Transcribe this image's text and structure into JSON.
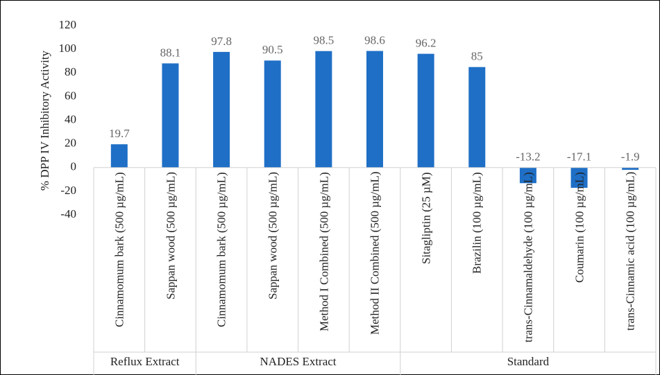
{
  "chart_data": {
    "type": "bar",
    "y_label": "% DPP IV Inhibitory Activity",
    "color": "#1f6fc6",
    "ylim": [
      -40,
      120
    ],
    "yticks": [
      -40,
      -20,
      0,
      20,
      40,
      60,
      80,
      100,
      120
    ],
    "groups": [
      {
        "name": "Reflux Extract",
        "categories": [
          "Cinnamomum bark (500 µg/mL)",
          "Sappan wood (500 µg/mL)"
        ],
        "values": [
          19.7,
          88.1
        ]
      },
      {
        "name": "NADES Extract",
        "categories": [
          "Cinnamomum bark (500 µg/mL)",
          "Sappan wood (500 µg/mL)",
          "Method I Combined (500 µg/mL)",
          "Method II Combined (500 µg/mL)"
        ],
        "values": [
          97.8,
          90.5,
          98.5,
          98.6
        ]
      },
      {
        "name": "Standard",
        "categories": [
          "Sitagliptin (25 µM)",
          "Brazilin (100 µg/mL)",
          "trans-Cinnamaldehyde (100 µg/mL)",
          "Coumarin (100 µg/mL)",
          "trans-Cinnamic acid (100 µg/mL)"
        ],
        "values": [
          96.2,
          85,
          -13.2,
          -17.1,
          -1.9
        ]
      }
    ]
  }
}
